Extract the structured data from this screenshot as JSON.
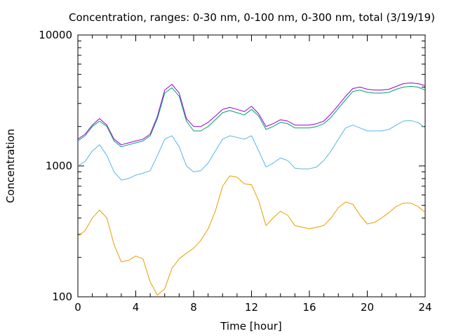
{
  "chart_data": {
    "type": "line",
    "title": "Concentration, ranges: 0-30 nm, 0-100 nm, 0-300 nm, total (3/19/19)",
    "xlabel": "Time [hour]",
    "ylabel": "Concentration",
    "xlim": [
      0,
      24
    ],
    "ylim": [
      100,
      10000
    ],
    "yscale": "log",
    "grid": false,
    "legend": "none",
    "x_ticks": [
      "0",
      "4",
      "8",
      "12",
      "16",
      "20",
      "24"
    ],
    "y_ticks": [
      "100",
      "1000",
      "10000"
    ],
    "series": [
      {
        "color": "#9400d3",
        "points": [
          [
            0,
            1600
          ],
          [
            0.5,
            1750
          ],
          [
            1,
            2050
          ],
          [
            1.5,
            2300
          ],
          [
            2,
            2050
          ],
          [
            2.5,
            1600
          ],
          [
            3,
            1450
          ],
          [
            3.5,
            1500
          ],
          [
            4,
            1550
          ],
          [
            4.5,
            1600
          ],
          [
            5,
            1750
          ],
          [
            5.5,
            2400
          ],
          [
            6,
            3800
          ],
          [
            6.5,
            4200
          ],
          [
            7,
            3600
          ],
          [
            7.5,
            2300
          ],
          [
            8,
            2000
          ],
          [
            8.5,
            2000
          ],
          [
            9,
            2150
          ],
          [
            9.5,
            2400
          ],
          [
            10,
            2700
          ],
          [
            10.5,
            2800
          ],
          [
            11,
            2700
          ],
          [
            11.5,
            2600
          ],
          [
            12,
            2850
          ],
          [
            12.5,
            2500
          ],
          [
            13,
            2000
          ],
          [
            13.5,
            2100
          ],
          [
            14,
            2250
          ],
          [
            14.5,
            2200
          ],
          [
            15,
            2050
          ],
          [
            15.5,
            2050
          ],
          [
            16,
            2050
          ],
          [
            16.5,
            2100
          ],
          [
            17,
            2200
          ],
          [
            17.5,
            2500
          ],
          [
            18,
            2900
          ],
          [
            18.5,
            3400
          ],
          [
            19,
            3900
          ],
          [
            19.5,
            4000
          ],
          [
            20,
            3850
          ],
          [
            20.5,
            3800
          ],
          [
            21,
            3800
          ],
          [
            21.5,
            3850
          ],
          [
            22,
            4050
          ],
          [
            22.5,
            4250
          ],
          [
            23,
            4300
          ],
          [
            23.5,
            4250
          ],
          [
            24,
            4100
          ]
        ]
      },
      {
        "color": "#009e73",
        "points": [
          [
            0,
            1550
          ],
          [
            0.5,
            1700
          ],
          [
            1,
            2000
          ],
          [
            1.5,
            2200
          ],
          [
            2,
            2000
          ],
          [
            2.5,
            1550
          ],
          [
            3,
            1400
          ],
          [
            3.5,
            1450
          ],
          [
            4,
            1500
          ],
          [
            4.5,
            1550
          ],
          [
            5,
            1700
          ],
          [
            5.5,
            2300
          ],
          [
            6,
            3600
          ],
          [
            6.5,
            3950
          ],
          [
            7,
            3400
          ],
          [
            7.5,
            2200
          ],
          [
            8,
            1850
          ],
          [
            8.5,
            1850
          ],
          [
            9,
            2000
          ],
          [
            9.5,
            2250
          ],
          [
            10,
            2550
          ],
          [
            10.5,
            2650
          ],
          [
            11,
            2550
          ],
          [
            11.5,
            2450
          ],
          [
            12,
            2700
          ],
          [
            12.5,
            2400
          ],
          [
            13,
            1900
          ],
          [
            13.5,
            2000
          ],
          [
            14,
            2150
          ],
          [
            14.5,
            2100
          ],
          [
            15,
            1950
          ],
          [
            15.5,
            1950
          ],
          [
            16,
            1950
          ],
          [
            16.5,
            2000
          ],
          [
            17,
            2100
          ],
          [
            17.5,
            2350
          ],
          [
            18,
            2750
          ],
          [
            18.5,
            3200
          ],
          [
            19,
            3700
          ],
          [
            19.5,
            3800
          ],
          [
            20,
            3650
          ],
          [
            20.5,
            3600
          ],
          [
            21,
            3600
          ],
          [
            21.5,
            3650
          ],
          [
            22,
            3850
          ],
          [
            22.5,
            4000
          ],
          [
            23,
            4050
          ],
          [
            23.5,
            4000
          ],
          [
            24,
            3800
          ]
        ]
      },
      {
        "color": "#56b4e9",
        "points": [
          [
            0,
            1000
          ],
          [
            0.5,
            1080
          ],
          [
            1,
            1300
          ],
          [
            1.5,
            1450
          ],
          [
            2,
            1200
          ],
          [
            2.5,
            900
          ],
          [
            3,
            780
          ],
          [
            3.5,
            800
          ],
          [
            4,
            850
          ],
          [
            4.5,
            880
          ],
          [
            5,
            920
          ],
          [
            5.5,
            1200
          ],
          [
            6,
            1600
          ],
          [
            6.5,
            1700
          ],
          [
            7,
            1400
          ],
          [
            7.5,
            1000
          ],
          [
            8,
            900
          ],
          [
            8.5,
            920
          ],
          [
            9,
            1050
          ],
          [
            9.5,
            1300
          ],
          [
            10,
            1600
          ],
          [
            10.5,
            1700
          ],
          [
            11,
            1650
          ],
          [
            11.5,
            1600
          ],
          [
            12,
            1700
          ],
          [
            12.5,
            1300
          ],
          [
            13,
            980
          ],
          [
            13.5,
            1050
          ],
          [
            14,
            1150
          ],
          [
            14.5,
            1100
          ],
          [
            15,
            960
          ],
          [
            15.5,
            950
          ],
          [
            16,
            950
          ],
          [
            16.5,
            980
          ],
          [
            17,
            1100
          ],
          [
            17.5,
            1300
          ],
          [
            18,
            1600
          ],
          [
            18.5,
            1950
          ],
          [
            19,
            2050
          ],
          [
            19.5,
            1950
          ],
          [
            20,
            1850
          ],
          [
            20.5,
            1850
          ],
          [
            21,
            1850
          ],
          [
            21.5,
            1900
          ],
          [
            22,
            2050
          ],
          [
            22.5,
            2200
          ],
          [
            23,
            2220
          ],
          [
            23.5,
            2150
          ],
          [
            24,
            1950
          ]
        ]
      },
      {
        "color": "#e69f00",
        "points": [
          [
            0,
            290
          ],
          [
            0.5,
            320
          ],
          [
            1,
            400
          ],
          [
            1.5,
            460
          ],
          [
            2,
            400
          ],
          [
            2.5,
            250
          ],
          [
            3,
            185
          ],
          [
            3.5,
            190
          ],
          [
            4,
            205
          ],
          [
            4.5,
            195
          ],
          [
            5,
            130
          ],
          [
            5.5,
            103
          ],
          [
            6,
            115
          ],
          [
            6.5,
            165
          ],
          [
            7,
            195
          ],
          [
            7.5,
            215
          ],
          [
            8,
            235
          ],
          [
            8.5,
            270
          ],
          [
            9,
            330
          ],
          [
            9.5,
            450
          ],
          [
            10,
            700
          ],
          [
            10.5,
            840
          ],
          [
            11,
            820
          ],
          [
            11.5,
            730
          ],
          [
            12,
            720
          ],
          [
            12.5,
            540
          ],
          [
            13,
            350
          ],
          [
            13.5,
            400
          ],
          [
            14,
            450
          ],
          [
            14.5,
            420
          ],
          [
            15,
            350
          ],
          [
            15.5,
            340
          ],
          [
            16,
            330
          ],
          [
            16.5,
            340
          ],
          [
            17,
            350
          ],
          [
            17.5,
            400
          ],
          [
            18,
            480
          ],
          [
            18.5,
            530
          ],
          [
            19,
            510
          ],
          [
            19.5,
            420
          ],
          [
            20,
            360
          ],
          [
            20.5,
            370
          ],
          [
            21,
            400
          ],
          [
            21.5,
            440
          ],
          [
            22,
            490
          ],
          [
            22.5,
            520
          ],
          [
            23,
            520
          ],
          [
            23.5,
            490
          ],
          [
            24,
            440
          ]
        ]
      }
    ]
  }
}
